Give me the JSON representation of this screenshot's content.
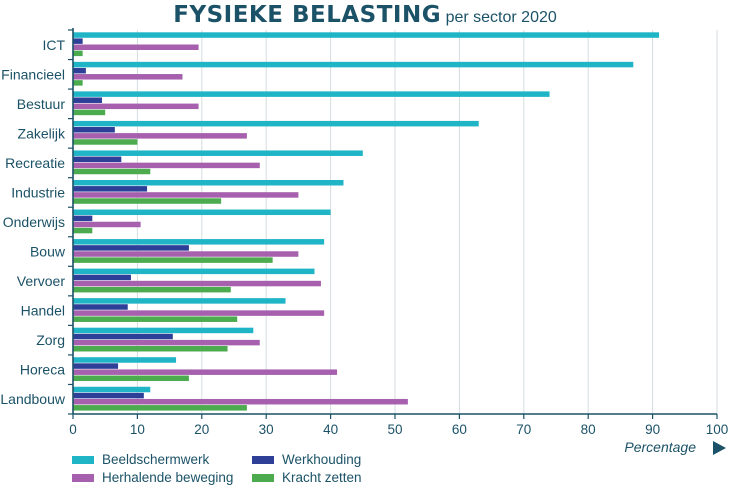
{
  "chart_data": {
    "type": "bar",
    "orientation": "horizontal",
    "title": "FYSIEKE BELASTING",
    "subtitle": "per sector 2020",
    "xlabel": "Percentage",
    "ylabel": "",
    "xlim": [
      0,
      100
    ],
    "xticks": [
      0,
      10,
      20,
      30,
      40,
      50,
      60,
      70,
      80,
      90,
      100
    ],
    "grid": true,
    "legend_position": "bottom-left",
    "categories": [
      "ICT",
      "Financieel",
      "Bestuur",
      "Zakelijk",
      "Recreatie",
      "Industrie",
      "Onderwijs",
      "Bouw",
      "Vervoer",
      "Handel",
      "Zorg",
      "Horeca",
      "Landbouw"
    ],
    "series": [
      {
        "name": "Beeldschermwerk",
        "color": "#1fb5c7",
        "values": [
          91,
          87,
          74,
          63,
          45,
          42,
          40,
          39,
          37.5,
          33,
          28,
          16,
          12
        ]
      },
      {
        "name": "Werkhouding",
        "color": "#2d3f96",
        "values": [
          1.5,
          2,
          4.5,
          6.5,
          7.5,
          11.5,
          3,
          18,
          9,
          8.5,
          15.5,
          7,
          11
        ]
      },
      {
        "name": "Herhalende beweging",
        "color": "#a660ad",
        "values": [
          19.5,
          17,
          19.5,
          27,
          29,
          35,
          10.5,
          35,
          38.5,
          39,
          29,
          41,
          52
        ]
      },
      {
        "name": "Kracht zetten",
        "color": "#4dab4f",
        "values": [
          1.5,
          1.5,
          5,
          10,
          12,
          23,
          3,
          31,
          24.5,
          25.5,
          24,
          18,
          27
        ]
      }
    ]
  }
}
